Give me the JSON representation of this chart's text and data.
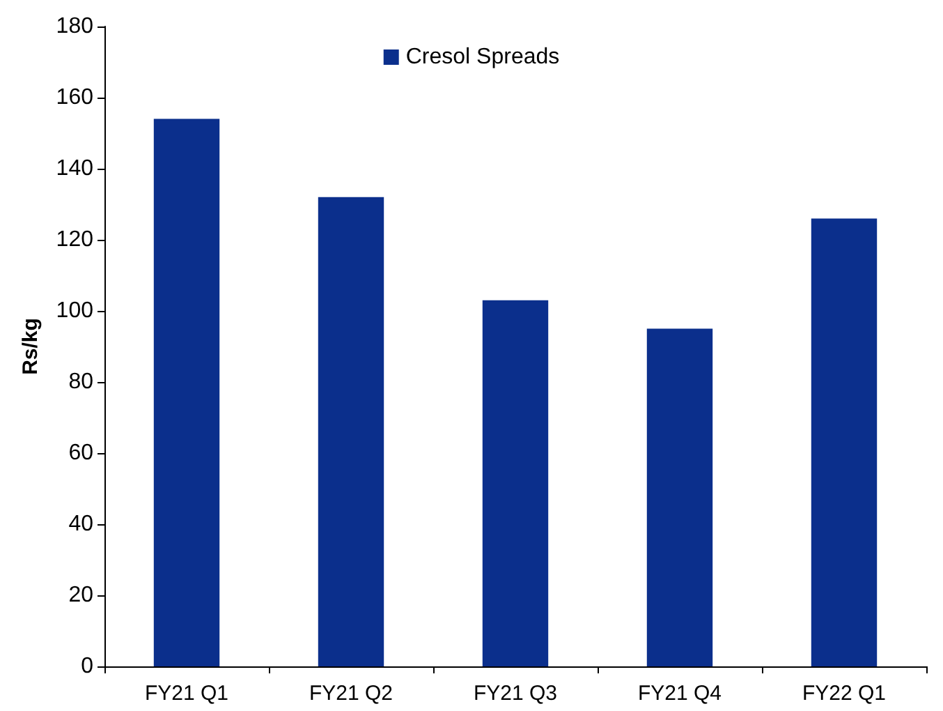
{
  "chart_data": {
    "type": "bar",
    "ylabel": "Rs/kg",
    "categories": [
      "FY21 Q1",
      "FY21 Q2",
      "FY21 Q3",
      "FY21 Q4",
      "FY22 Q1"
    ],
    "series": [
      {
        "name": "Cresol Spreads",
        "color": "#0b2f8c",
        "values": [
          154,
          132,
          103,
          95,
          126
        ]
      }
    ],
    "ylim": [
      0,
      180
    ],
    "yticks": [
      0,
      20,
      40,
      60,
      80,
      100,
      120,
      140,
      160,
      180
    ],
    "grid": false,
    "legend": "top"
  }
}
